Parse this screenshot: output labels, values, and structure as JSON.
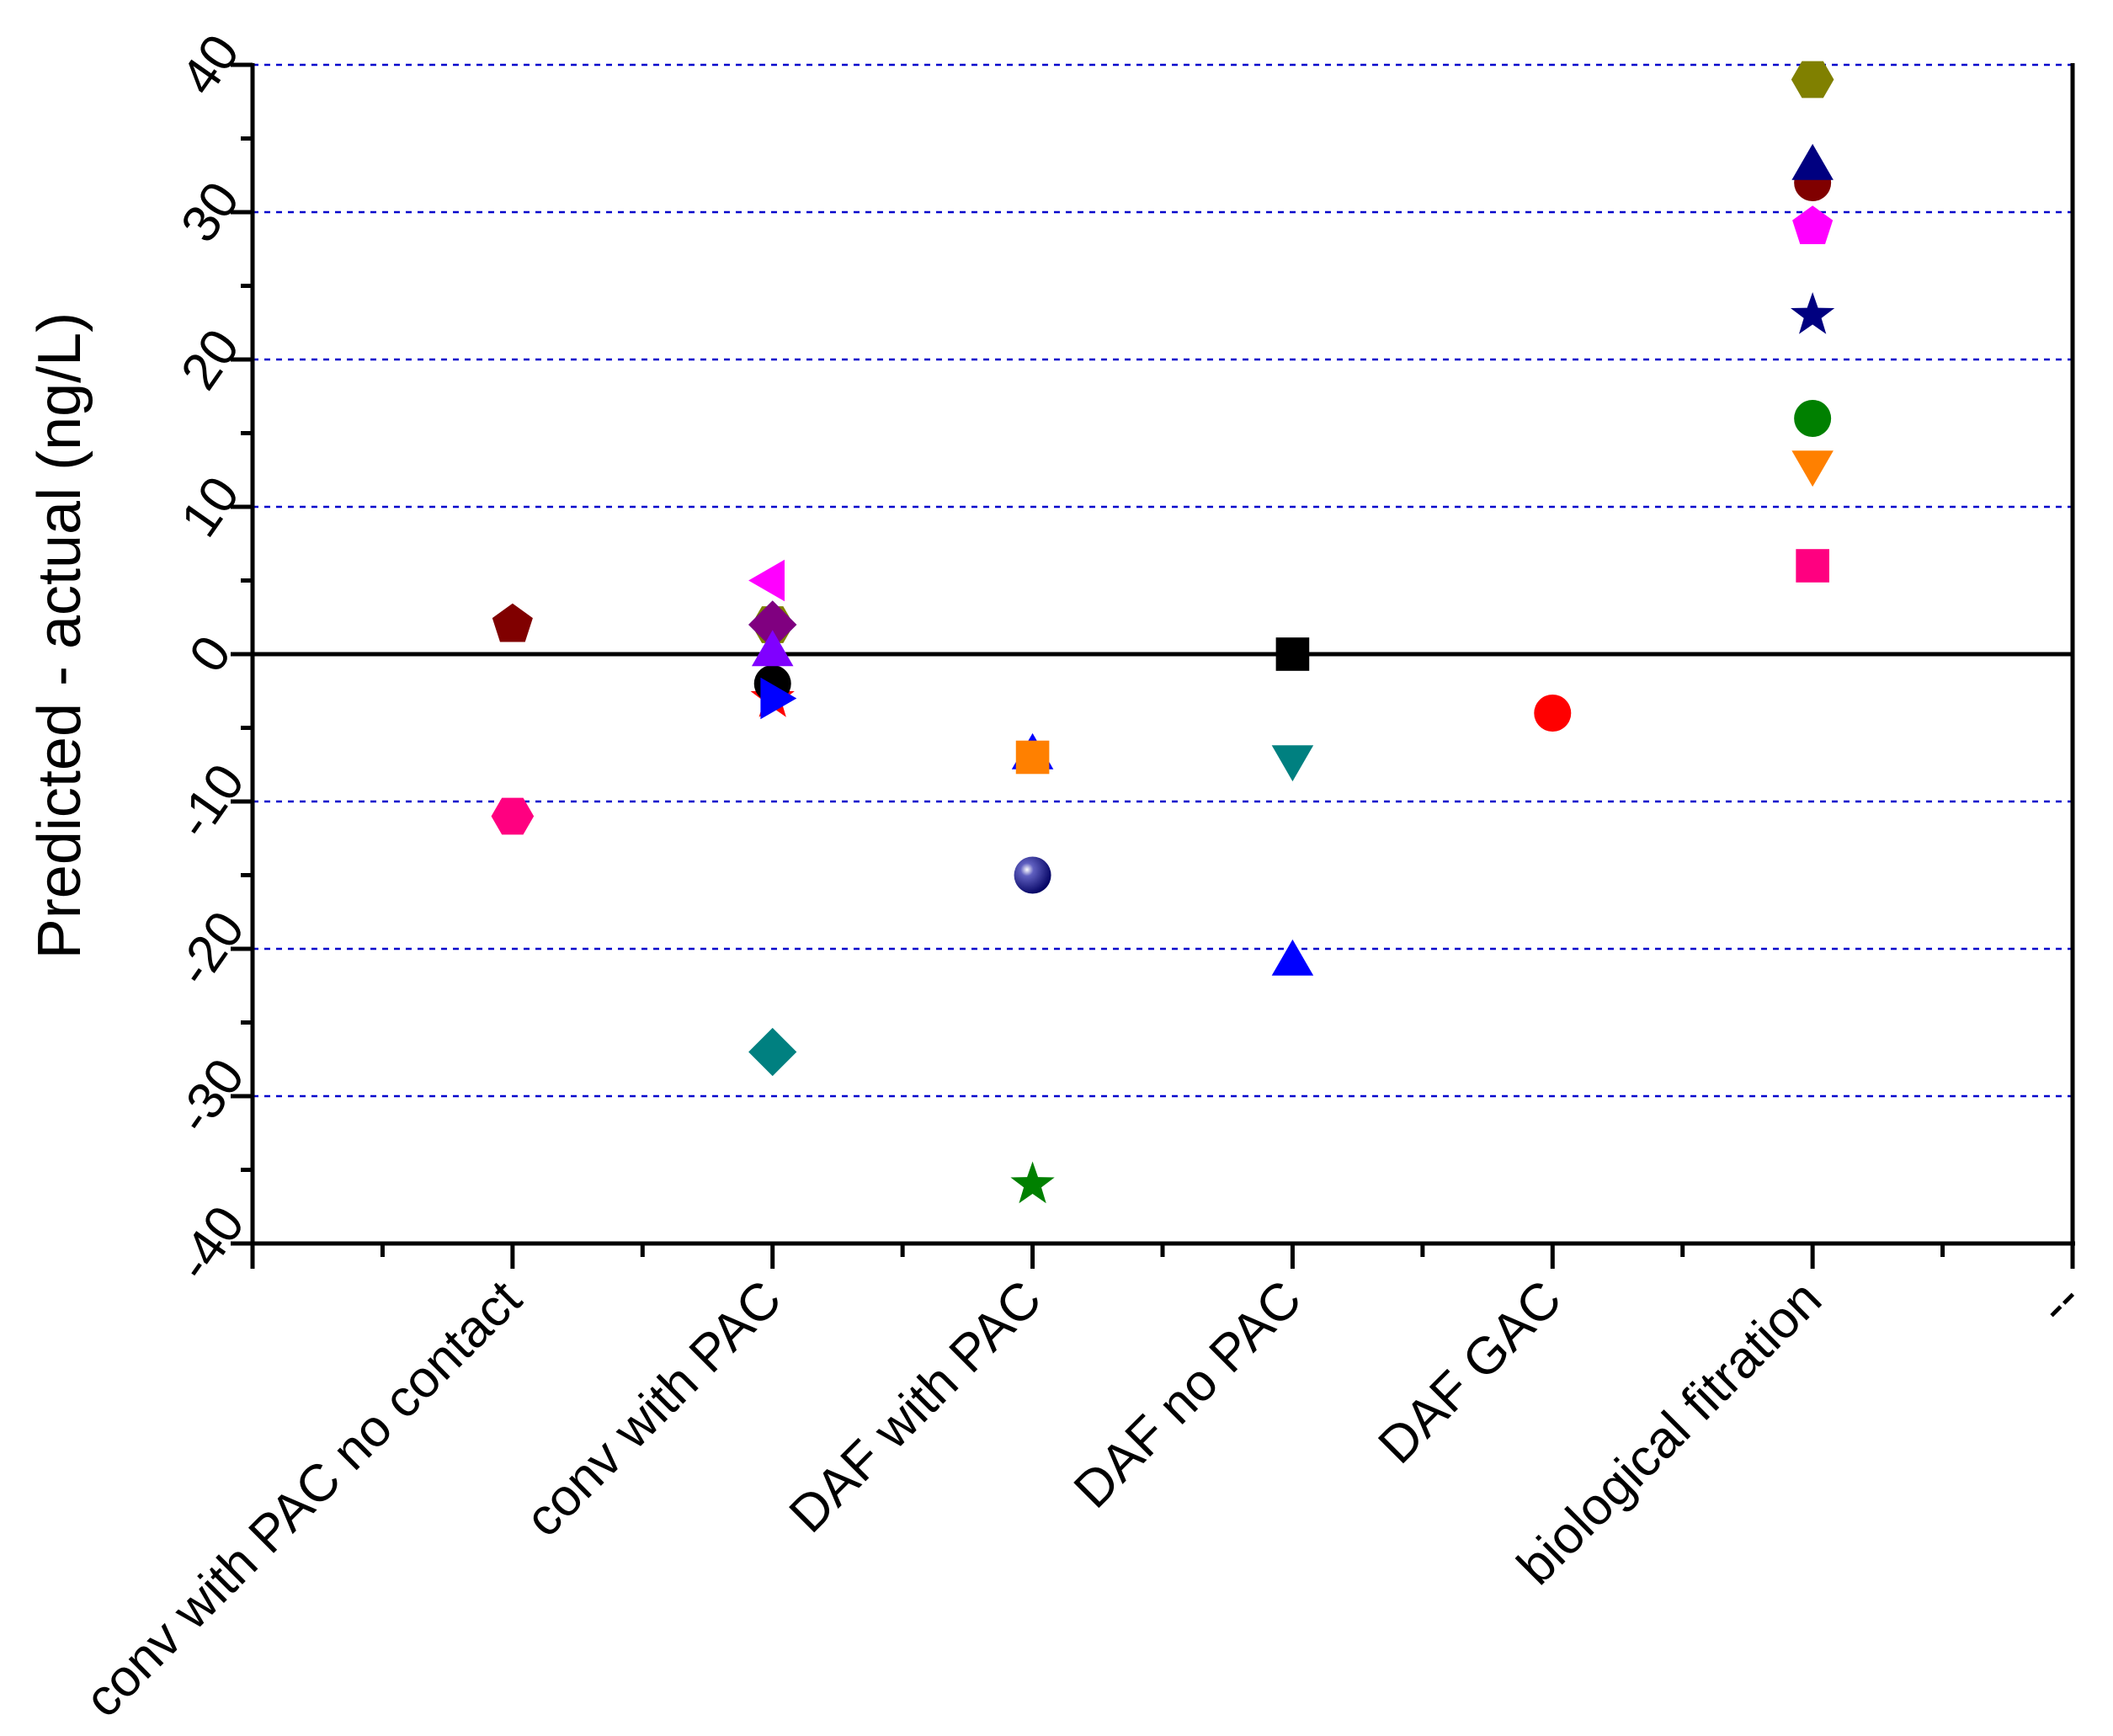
{
  "chart_data": {
    "type": "scatter",
    "title": "",
    "xlabel": "",
    "ylabel": "Predicted - actual (ng/L)",
    "ylim": [
      -40,
      40
    ],
    "yticks": [
      -40,
      -30,
      -20,
      -10,
      0,
      10,
      20,
      30,
      40
    ],
    "ytick_labels": [
      "-40",
      "-30",
      "-20",
      "-10",
      "0",
      "10",
      "20",
      "30",
      "40"
    ],
    "y_minor_step": 5,
    "grid": {
      "major_y": true,
      "style": "dashed",
      "color": "#0000cc"
    },
    "zero_line": true,
    "x_range": [
      0,
      7
    ],
    "categories": [
      "conv with PAC no contact",
      "conv with PAC",
      "DAF with PAC",
      "DAF no PAC",
      "DAF GAC",
      "biological fitration",
      "--"
    ],
    "category_positions": [
      1,
      2,
      3,
      4,
      5,
      6,
      7
    ],
    "x_minor_step": 0.5,
    "points": [
      {
        "category": "conv with PAC no contact",
        "x": 1,
        "y": 2,
        "marker": "pentagon",
        "color": "#800000"
      },
      {
        "category": "conv with PAC no contact",
        "x": 1,
        "y": -11,
        "marker": "hexagon",
        "color": "#ff0080"
      },
      {
        "category": "conv with PAC",
        "x": 2,
        "y": 5,
        "marker": "triangle-left",
        "color": "#ff00ff"
      },
      {
        "category": "conv with PAC",
        "x": 2,
        "y": 2,
        "marker": "hexagon",
        "color": "#808000"
      },
      {
        "category": "conv with PAC",
        "x": 2,
        "y": 2,
        "marker": "diamond",
        "color": "#000080"
      },
      {
        "category": "conv with PAC",
        "x": 2,
        "y": 2,
        "marker": "diamond",
        "color": "#800080"
      },
      {
        "category": "conv with PAC",
        "x": 2,
        "y": -3,
        "marker": "star",
        "color": "#ff0000"
      },
      {
        "category": "conv with PAC",
        "x": 2,
        "y": -2,
        "marker": "circle",
        "color": "#000000"
      },
      {
        "category": "conv with PAC",
        "x": 2,
        "y": 0,
        "marker": "triangle-up",
        "color": "#8000ff"
      },
      {
        "category": "conv with PAC",
        "x": 2,
        "y": -3,
        "marker": "triangle-right",
        "color": "#0000ff"
      },
      {
        "category": "conv with PAC",
        "x": 2,
        "y": -27,
        "marker": "diamond",
        "color": "#008080"
      },
      {
        "category": "DAF with PAC",
        "x": 3,
        "y": -7,
        "marker": "triangle-up",
        "color": "#0000ff"
      },
      {
        "category": "DAF with PAC",
        "x": 3,
        "y": -7,
        "marker": "square",
        "color": "#ff8000"
      },
      {
        "category": "DAF with PAC",
        "x": 3,
        "y": -15,
        "marker": "sphere",
        "color": "#000080"
      },
      {
        "category": "DAF with PAC",
        "x": 3,
        "y": -36,
        "marker": "star",
        "color": "#008000"
      },
      {
        "category": "DAF no PAC",
        "x": 4,
        "y": 0,
        "marker": "square",
        "color": "#000000"
      },
      {
        "category": "DAF no PAC",
        "x": 4,
        "y": -7,
        "marker": "triangle-down",
        "color": "#008080"
      },
      {
        "category": "DAF no PAC",
        "x": 4,
        "y": -21,
        "marker": "triangle-up",
        "color": "#0000ff"
      },
      {
        "category": "DAF GAC",
        "x": 5,
        "y": -4,
        "marker": "circle",
        "color": "#ff0000"
      },
      {
        "category": "biological fitration",
        "x": 6,
        "y": 39,
        "marker": "hexagon",
        "color": "#808000"
      },
      {
        "category": "biological fitration",
        "x": 6,
        "y": 32,
        "marker": "circle",
        "color": "#800000"
      },
      {
        "category": "biological fitration",
        "x": 6,
        "y": 33,
        "marker": "triangle-up",
        "color": "#000080"
      },
      {
        "category": "biological fitration",
        "x": 6,
        "y": 29,
        "marker": "pentagon",
        "color": "#ff00ff"
      },
      {
        "category": "biological fitration",
        "x": 6,
        "y": 23,
        "marker": "star",
        "color": "#000080"
      },
      {
        "category": "biological fitration",
        "x": 6,
        "y": 16,
        "marker": "circle",
        "color": "#008000"
      },
      {
        "category": "biological fitration",
        "x": 6,
        "y": 13,
        "marker": "triangle-down",
        "color": "#ff8000"
      },
      {
        "category": "biological fitration",
        "x": 6,
        "y": 6,
        "marker": "square",
        "color": "#ff0080"
      }
    ]
  }
}
